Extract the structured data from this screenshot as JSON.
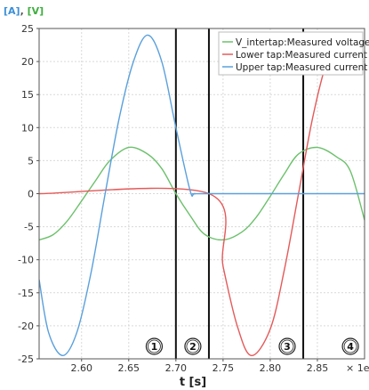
{
  "chart_data": {
    "type": "line",
    "ylabel_parts": [
      {
        "text": "[A]",
        "color": "#3a8fd8"
      },
      {
        "text": ", ",
        "color": "#555555"
      },
      {
        "text": "[V]",
        "color": "#3fae3f"
      }
    ],
    "xlabel": "t [s]",
    "x_exponent_label": "× 1e",
    "xlim": [
      2.555,
      2.9
    ],
    "ylim": [
      -25,
      25
    ],
    "x_ticks": [
      2.6,
      2.65,
      2.7,
      2.75,
      2.8,
      2.85
    ],
    "x_tick_labels": [
      "2.60",
      "2.65",
      "2.70",
      "2.75",
      "2.80",
      "2.85"
    ],
    "y_ticks": [
      25,
      20,
      15,
      10,
      5,
      0,
      -5,
      -10,
      -15,
      -20,
      -25
    ],
    "y_tick_labels": [
      "25",
      "20",
      "15",
      "10",
      "5",
      "0",
      "-5",
      "-10",
      "-15",
      "-20",
      "-25"
    ],
    "grid": true,
    "legend_position": "top-right",
    "series": [
      {
        "name": "V_intertap:Measured voltage",
        "color": "#6cc06c",
        "x": [
          2.555,
          2.57,
          2.585,
          2.6,
          2.615,
          2.63,
          2.65,
          2.67,
          2.685,
          2.7,
          2.715,
          2.73,
          2.75,
          2.77,
          2.785,
          2.8,
          2.815,
          2.83,
          2.85,
          2.87,
          2.885,
          2.9
        ],
        "y": [
          -7.0,
          -6.2,
          -4.1,
          -1.1,
          2.0,
          5.0,
          7.0,
          6.0,
          3.8,
          0.0,
          -3.3,
          -6.1,
          -7.0,
          -5.8,
          -3.6,
          -0.4,
          3.0,
          6.0,
          7.0,
          5.6,
          3.4,
          -4.0
        ]
      },
      {
        "name": "Lower tap:Measured current",
        "color": "#e45a5a",
        "x": [
          2.555,
          2.735,
          2.75,
          2.765,
          2.78,
          2.8,
          2.815,
          2.83,
          2.845,
          2.86,
          2.875
        ],
        "y": [
          0,
          0,
          -11.0,
          -20.0,
          -24.5,
          -20.5,
          -11.5,
          0.0,
          11.5,
          20.0,
          24.5
        ]
      },
      {
        "name": "Upper tap:Measured current",
        "color": "#5aa0dc",
        "x": [
          2.555,
          2.565,
          2.58,
          2.595,
          2.61,
          2.625,
          2.64,
          2.655,
          2.67,
          2.685,
          2.7,
          2.715,
          2.72,
          2.735,
          2.9
        ],
        "y": [
          -13.0,
          -21.0,
          -24.5,
          -21.0,
          -12.0,
          0.0,
          11.5,
          20.0,
          24.0,
          20.0,
          10.0,
          0.5,
          0.0,
          0.0,
          0.0
        ]
      }
    ],
    "vlines": [
      2.7,
      2.735,
      2.835
    ],
    "region_markers": [
      {
        "label": "1",
        "x": 2.677
      },
      {
        "label": "2",
        "x": 2.718
      },
      {
        "label": "3",
        "x": 2.818
      },
      {
        "label": "4",
        "x": 2.885
      }
    ]
  }
}
